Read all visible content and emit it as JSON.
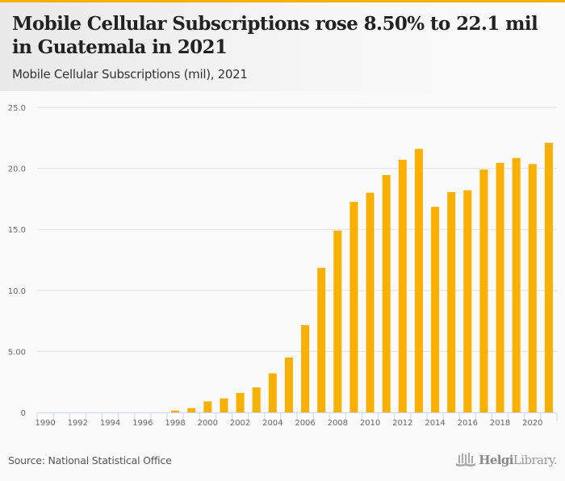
{
  "header": {
    "title": "Mobile Cellular Subscriptions rose 8.50% to 22.1 mil in Guatemala in 2021",
    "subtitle": "Mobile Cellular Subscriptions (mil), 2021"
  },
  "footer": {
    "source": "Source: National Statistical Office",
    "logo_bold": "Helgi",
    "logo_light": "Library."
  },
  "colors": {
    "accent": "#f9b000",
    "bar": "#f9b000",
    "grid": "#e3e3e3",
    "axis": "#ccd6eb",
    "tick_text": "#666666"
  },
  "chart_data": {
    "type": "bar",
    "title": "Mobile Cellular Subscriptions (mil), 2021",
    "xlabel": "",
    "ylabel": "",
    "ylim": [
      0,
      25
    ],
    "grid": true,
    "legend": "none",
    "y_ticks": [
      {
        "value": 0,
        "label": "0"
      },
      {
        "value": 5,
        "label": "5.00"
      },
      {
        "value": 10,
        "label": "10.0"
      },
      {
        "value": 15,
        "label": "15.0"
      },
      {
        "value": 20,
        "label": "20.0"
      },
      {
        "value": 25,
        "label": "25.0"
      }
    ],
    "x_tick_labels": [
      "1990",
      "1992",
      "1994",
      "1996",
      "1998",
      "2000",
      "2002",
      "2004",
      "2006",
      "2008",
      "2010",
      "2012",
      "2014",
      "2016",
      "2018",
      "2020"
    ],
    "categories": [
      "1990",
      "1991",
      "1992",
      "1993",
      "1994",
      "1995",
      "1996",
      "1997",
      "1998",
      "1999",
      "2000",
      "2001",
      "2002",
      "2003",
      "2004",
      "2005",
      "2006",
      "2007",
      "2008",
      "2009",
      "2010",
      "2011",
      "2012",
      "2013",
      "2014",
      "2015",
      "2016",
      "2017",
      "2018",
      "2019",
      "2020",
      "2021"
    ],
    "series": [
      {
        "name": "Mobile Cellular Subscriptions (mil)",
        "values": [
          0,
          0,
          0,
          0,
          0,
          0,
          0,
          0,
          0.15,
          0.35,
          0.9,
          1.15,
          1.6,
          2.05,
          3.2,
          4.5,
          7.15,
          11.85,
          14.9,
          17.25,
          18.0,
          19.45,
          20.7,
          21.6,
          16.85,
          18.05,
          18.2,
          19.9,
          20.45,
          20.85,
          20.35,
          22.1
        ]
      }
    ]
  }
}
